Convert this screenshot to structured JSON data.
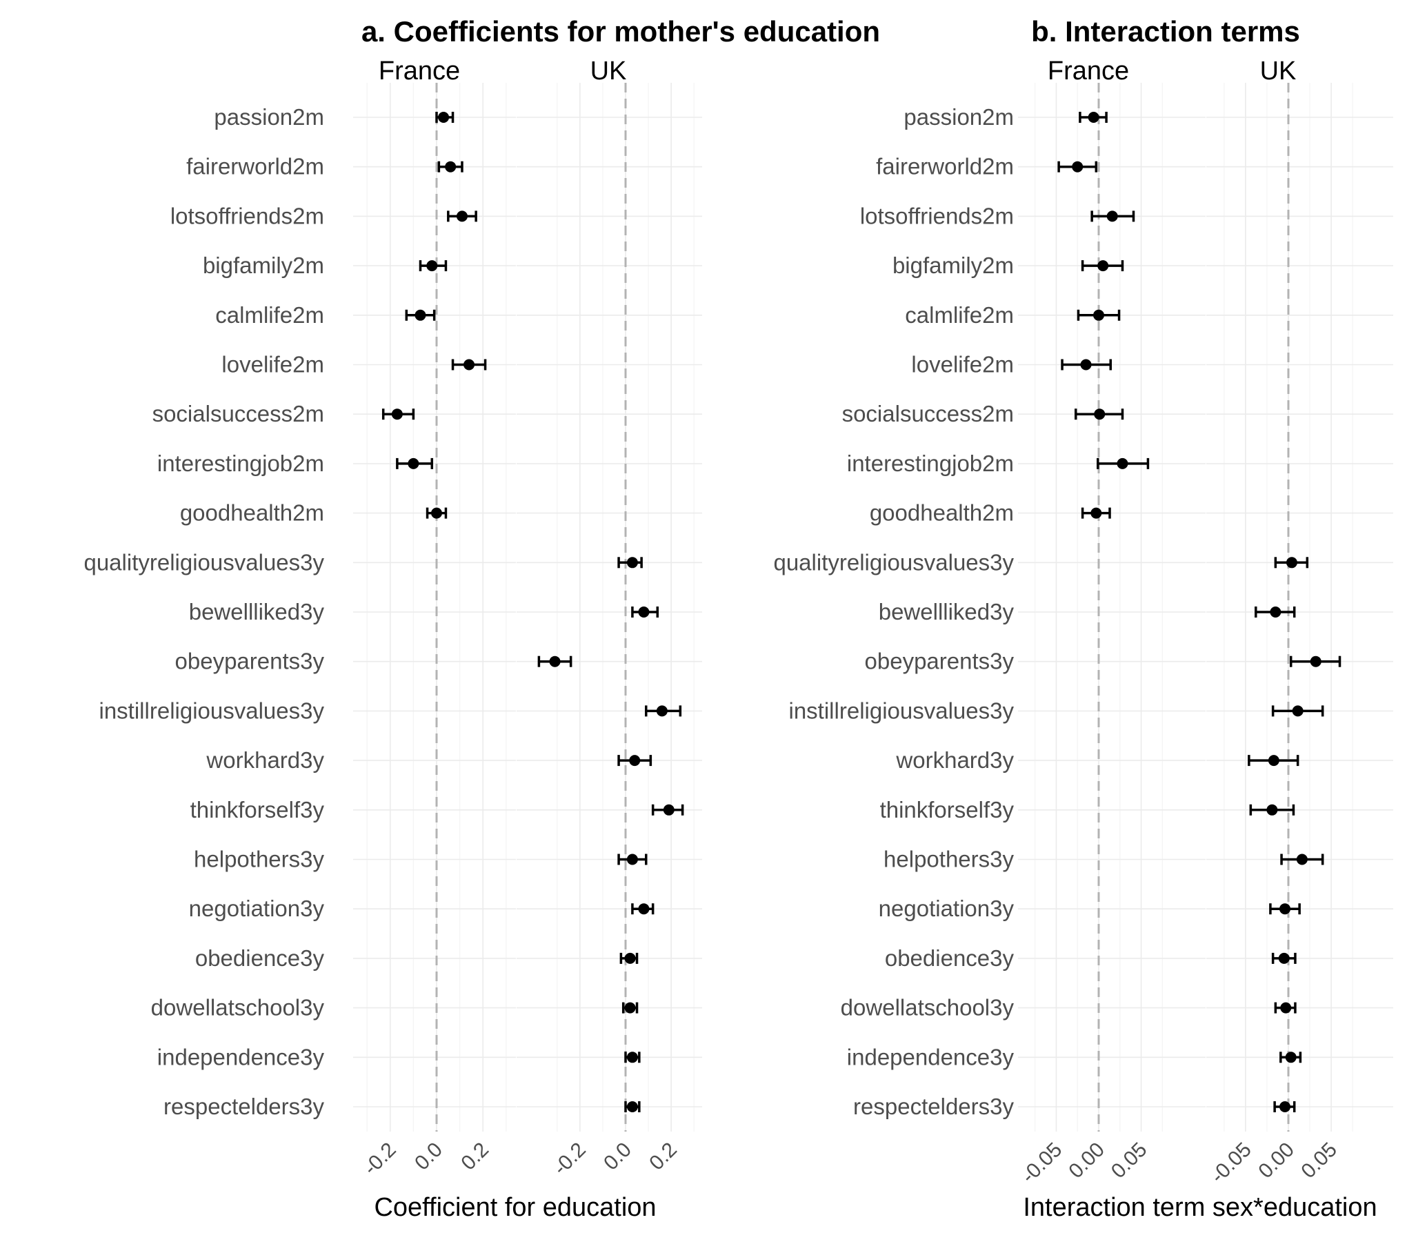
{
  "chart_data": [
    {
      "type": "scatter",
      "title": "a. Coefficients for mother's education",
      "xlabel": "Coefficient for education",
      "facets": [
        "France",
        "UK"
      ],
      "xlim": [
        -0.36,
        0.36
      ],
      "xticks": [
        -0.2,
        0.0,
        0.2
      ],
      "xtick_labels": [
        "-0.2",
        "0.0",
        "0.2"
      ],
      "reference_line": 0.0,
      "categories": [
        "passion2m",
        "fairerworld2m",
        "lotsoffriends2m",
        "bigfamily2m",
        "calmlife2m",
        "lovelife2m",
        "socialsuccess2m",
        "interestingjob2m",
        "goodhealth2m",
        "qualityreligiousvalues3y",
        "bewellliked3y",
        "obeyparents3y",
        "instillreligiousvalues3y",
        "workhard3y",
        "thinkforself3y",
        "helpothers3y",
        "negotiation3y",
        "obedience3y",
        "dowellatschool3y",
        "independence3y",
        "respectelders3y"
      ],
      "points": [
        {
          "label": "passion2m",
          "facet": "France",
          "estimate": 0.03,
          "low": 0.0,
          "high": 0.07
        },
        {
          "label": "fairerworld2m",
          "facet": "France",
          "estimate": 0.06,
          "low": 0.01,
          "high": 0.11
        },
        {
          "label": "lotsoffriends2m",
          "facet": "France",
          "estimate": 0.11,
          "low": 0.05,
          "high": 0.17
        },
        {
          "label": "bigfamily2m",
          "facet": "France",
          "estimate": -0.02,
          "low": -0.07,
          "high": 0.04
        },
        {
          "label": "calmlife2m",
          "facet": "France",
          "estimate": -0.07,
          "low": -0.13,
          "high": -0.01
        },
        {
          "label": "lovelife2m",
          "facet": "France",
          "estimate": 0.14,
          "low": 0.07,
          "high": 0.21
        },
        {
          "label": "socialsuccess2m",
          "facet": "France",
          "estimate": -0.17,
          "low": -0.23,
          "high": -0.1
        },
        {
          "label": "interestingjob2m",
          "facet": "France",
          "estimate": -0.1,
          "low": -0.17,
          "high": -0.02
        },
        {
          "label": "goodhealth2m",
          "facet": "France",
          "estimate": 0.0,
          "low": -0.04,
          "high": 0.04
        },
        {
          "label": "qualityreligiousvalues3y",
          "facet": "UK",
          "estimate": 0.03,
          "low": -0.03,
          "high": 0.07
        },
        {
          "label": "bewellliked3y",
          "facet": "UK",
          "estimate": 0.08,
          "low": 0.03,
          "high": 0.14
        },
        {
          "label": "obeyparents3y",
          "facet": "UK",
          "estimate": -0.31,
          "low": -0.38,
          "high": -0.24
        },
        {
          "label": "instillreligiousvalues3y",
          "facet": "UK",
          "estimate": 0.16,
          "low": 0.09,
          "high": 0.24
        },
        {
          "label": "workhard3y",
          "facet": "UK",
          "estimate": 0.04,
          "low": -0.03,
          "high": 0.11
        },
        {
          "label": "thinkforself3y",
          "facet": "UK",
          "estimate": 0.19,
          "low": 0.12,
          "high": 0.25
        },
        {
          "label": "helpothers3y",
          "facet": "UK",
          "estimate": 0.03,
          "low": -0.03,
          "high": 0.09
        },
        {
          "label": "negotiation3y",
          "facet": "UK",
          "estimate": 0.08,
          "low": 0.03,
          "high": 0.12
        },
        {
          "label": "obedience3y",
          "facet": "UK",
          "estimate": 0.02,
          "low": -0.02,
          "high": 0.05
        },
        {
          "label": "dowellatschool3y",
          "facet": "UK",
          "estimate": 0.02,
          "low": -0.01,
          "high": 0.05
        },
        {
          "label": "independence3y",
          "facet": "UK",
          "estimate": 0.03,
          "low": 0.0,
          "high": 0.06
        },
        {
          "label": "respectelders3y",
          "facet": "UK",
          "estimate": 0.03,
          "low": 0.0,
          "high": 0.06
        }
      ]
    },
    {
      "type": "scatter",
      "title": "b. Interaction terms",
      "xlabel": "Interaction term sex*education",
      "facets": [
        "France",
        "UK"
      ],
      "xlim": [
        -0.095,
        0.075
      ],
      "xticks": [
        -0.05,
        0.0,
        0.05
      ],
      "xtick_labels": [
        "-0.05",
        "0.00",
        "0.05"
      ],
      "reference_line": 0.0,
      "categories": [
        "passion2m",
        "fairerworld2m",
        "lotsoffriends2m",
        "bigfamily2m",
        "calmlife2m",
        "lovelife2m",
        "socialsuccess2m",
        "interestingjob2m",
        "goodhealth2m",
        "qualityreligiousvalues3y",
        "bewellliked3y",
        "obeyparents3y",
        "instillreligiousvalues3y",
        "workhard3y",
        "thinkforself3y",
        "helpothers3y",
        "negotiation3y",
        "obedience3y",
        "dowellatschool3y",
        "independence3y",
        "respectelders3y"
      ],
      "points": [
        {
          "label": "passion2m",
          "facet": "France",
          "estimate": -0.006,
          "low": -0.022,
          "high": 0.009
        },
        {
          "label": "fairerworld2m",
          "facet": "France",
          "estimate": -0.025,
          "low": -0.047,
          "high": -0.003
        },
        {
          "label": "lotsoffriends2m",
          "facet": "France",
          "estimate": 0.016,
          "low": -0.008,
          "high": 0.041
        },
        {
          "label": "bigfamily2m",
          "facet": "France",
          "estimate": 0.005,
          "low": -0.019,
          "high": 0.028
        },
        {
          "label": "calmlife2m",
          "facet": "France",
          "estimate": 0.0,
          "low": -0.024,
          "high": 0.024
        },
        {
          "label": "lovelife2m",
          "facet": "France",
          "estimate": -0.015,
          "low": -0.043,
          "high": 0.014
        },
        {
          "label": "socialsuccess2m",
          "facet": "France",
          "estimate": 0.001,
          "low": -0.027,
          "high": 0.028
        },
        {
          "label": "interestingjob2m",
          "facet": "France",
          "estimate": 0.028,
          "low": -0.001,
          "high": 0.058
        },
        {
          "label": "goodhealth2m",
          "facet": "France",
          "estimate": -0.003,
          "low": -0.019,
          "high": 0.013
        },
        {
          "label": "qualityreligiousvalues3y",
          "facet": "UK",
          "estimate": 0.004,
          "low": -0.015,
          "high": 0.022
        },
        {
          "label": "bewellliked3y",
          "facet": "UK",
          "estimate": -0.015,
          "low": -0.038,
          "high": 0.007
        },
        {
          "label": "obeyparents3y",
          "facet": "UK",
          "estimate": 0.032,
          "low": 0.003,
          "high": 0.06
        },
        {
          "label": "instillreligiousvalues3y",
          "facet": "UK",
          "estimate": 0.011,
          "low": -0.018,
          "high": 0.04
        },
        {
          "label": "workhard3y",
          "facet": "UK",
          "estimate": -0.017,
          "low": -0.046,
          "high": 0.011
        },
        {
          "label": "thinkforself3y",
          "facet": "UK",
          "estimate": -0.019,
          "low": -0.044,
          "high": 0.006
        },
        {
          "label": "helpothers3y",
          "facet": "UK",
          "estimate": 0.016,
          "low": -0.008,
          "high": 0.04
        },
        {
          "label": "negotiation3y",
          "facet": "UK",
          "estimate": -0.004,
          "low": -0.021,
          "high": 0.013
        },
        {
          "label": "obedience3y",
          "facet": "UK",
          "estimate": -0.005,
          "low": -0.018,
          "high": 0.008
        },
        {
          "label": "dowellatschool3y",
          "facet": "UK",
          "estimate": -0.003,
          "low": -0.015,
          "high": 0.008
        },
        {
          "label": "independence3y",
          "facet": "UK",
          "estimate": 0.003,
          "low": -0.009,
          "high": 0.014
        },
        {
          "label": "respectelders3y",
          "facet": "UK",
          "estimate": -0.004,
          "low": -0.016,
          "high": 0.007
        }
      ]
    }
  ]
}
